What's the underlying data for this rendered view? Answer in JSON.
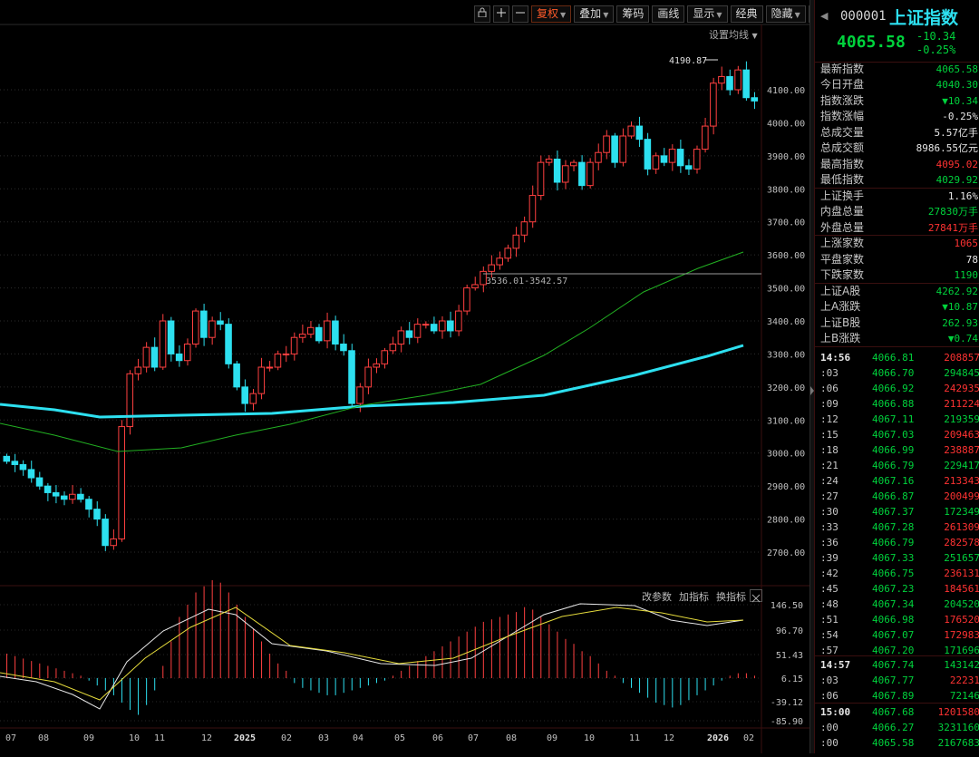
{
  "toolbar": {
    "buttons": [
      {
        "label": "复权",
        "active": true,
        "caret": true
      },
      {
        "label": "叠加",
        "caret": true
      },
      {
        "label": "筹码"
      },
      {
        "label": "画线"
      },
      {
        "label": "显示",
        "caret": true
      },
      {
        "label": "经典"
      },
      {
        "label": "隐藏",
        "caret": true
      }
    ],
    "icons": [
      "lock-icon",
      "plus-icon",
      "minus-icon",
      "fullscreen-icon"
    ],
    "ma_setting": "设置均线"
  },
  "indicator_panel": {
    "buttons": [
      "改参数",
      "加指标",
      "换指标"
    ],
    "close_icon": "close-icon"
  },
  "annotations": {
    "high_label": "4190.87",
    "range_label": "3536.01-3542.57"
  },
  "chart_data": {
    "type": "candlestick",
    "price_axis": [
      4100,
      4000,
      3900,
      3800,
      3700,
      3600,
      3500,
      3400,
      3300,
      3200,
      3100,
      3000,
      2900,
      2800,
      2700
    ],
    "price_axis_labels": [
      "4100.00",
      "4000.00",
      "3900.00",
      "3800.00",
      "3700.00",
      "3600.00",
      "3500.00",
      "3400.00",
      "3300.00",
      "3200.00",
      "3100.00",
      "3000.00",
      "2900.00",
      "2800.00",
      "2700.00"
    ],
    "macd_axis_labels": [
      "146.50",
      "96.70",
      "51.43",
      "6.15",
      "-39.12",
      "-85.90"
    ],
    "x_labels": [
      "07",
      "08",
      "09",
      "10",
      "11",
      "12",
      "2025",
      "02",
      "03",
      "04",
      "05",
      "06",
      "07",
      "08",
      "09",
      "10",
      "11",
      "12",
      "2026",
      "02"
    ],
    "colors": {
      "up": "#ff4040",
      "down": "#2de0f0",
      "ma_long": "#2de0f0",
      "ma_mid": "#22b022",
      "dif": "#e8e8e8",
      "dea": "#e6dc3c"
    }
  },
  "quote": {
    "code": "000001",
    "name": "上证指数",
    "price": "4065.58",
    "change": "-10.34",
    "change_pct": "-0.25%",
    "fields": [
      {
        "label": "最新指数",
        "value": "4065.58",
        "color": "green"
      },
      {
        "label": "今日开盘",
        "value": "4040.30",
        "color": "green"
      },
      {
        "label": "指数涨跌",
        "value": "▼10.34",
        "color": "green"
      },
      {
        "label": "指数涨幅",
        "value": "-0.25%",
        "color": "white"
      },
      {
        "label": "总成交量",
        "value": "5.57亿手",
        "color": "white"
      },
      {
        "label": "总成交额",
        "value": "8986.55亿元",
        "color": "white"
      },
      {
        "label": "最高指数",
        "value": "4095.02",
        "color": "red"
      },
      {
        "label": "最低指数",
        "value": "4029.92",
        "color": "green"
      },
      {
        "label": "上证换手",
        "value": "1.16%",
        "color": "white"
      },
      {
        "label": "内盘总量",
        "value": "27830万手",
        "color": "green"
      },
      {
        "label": "外盘总量",
        "value": "27841万手",
        "color": "red"
      },
      {
        "label": "上涨家数",
        "value": "1065",
        "color": "red"
      },
      {
        "label": "平盘家数",
        "value": "78",
        "color": "white"
      },
      {
        "label": "下跌家数",
        "value": "1190",
        "color": "green"
      },
      {
        "label": "上证A股",
        "value": "4262.92",
        "color": "green"
      },
      {
        "label": "上A涨跌",
        "value": "▼10.87",
        "color": "green"
      },
      {
        "label": "上证B股",
        "value": "262.93",
        "color": "green"
      },
      {
        "label": "上B涨跌",
        "value": "▼0.74",
        "color": "green"
      }
    ]
  },
  "ticks": [
    {
      "time": "14:56",
      "price": "4066.81",
      "vol": "208857"
    },
    {
      "time": ":03",
      "price": "4066.70",
      "vol": "294845"
    },
    {
      "time": ":06",
      "price": "4066.92",
      "vol": "242935"
    },
    {
      "time": ":09",
      "price": "4066.88",
      "vol": "211224"
    },
    {
      "time": ":12",
      "price": "4067.11",
      "vol": "219359"
    },
    {
      "time": ":15",
      "price": "4067.03",
      "vol": "209463"
    },
    {
      "time": ":18",
      "price": "4066.99",
      "vol": "238887"
    },
    {
      "time": ":21",
      "price": "4066.79",
      "vol": "229417"
    },
    {
      "time": ":24",
      "price": "4067.16",
      "vol": "213343"
    },
    {
      "time": ":27",
      "price": "4066.87",
      "vol": "200499"
    },
    {
      "time": ":30",
      "price": "4067.37",
      "vol": "172349"
    },
    {
      "time": ":33",
      "price": "4067.28",
      "vol": "261309"
    },
    {
      "time": ":36",
      "price": "4066.79",
      "vol": "282578"
    },
    {
      "time": ":39",
      "price": "4067.33",
      "vol": "251657"
    },
    {
      "time": ":42",
      "price": "4066.75",
      "vol": "236131"
    },
    {
      "time": ":45",
      "price": "4067.23",
      "vol": "184561"
    },
    {
      "time": ":48",
      "price": "4067.34",
      "vol": "204520"
    },
    {
      "time": ":51",
      "price": "4066.98",
      "vol": "176520"
    },
    {
      "time": ":54",
      "price": "4067.07",
      "vol": "172983"
    },
    {
      "time": ":57",
      "price": "4067.20",
      "vol": "171696"
    },
    {
      "time": "14:57",
      "price": "4067.74",
      "vol": "143142"
    },
    {
      "time": ":03",
      "price": "4067.77",
      "vol": "22231"
    },
    {
      "time": ":06",
      "price": "4067.89",
      "vol": "72146"
    },
    {
      "time": "15:00",
      "price": "4067.68",
      "vol": "1201580"
    },
    {
      "time": ":00",
      "price": "4066.27",
      "vol": "3231160"
    },
    {
      "time": ":00",
      "price": "4065.58",
      "vol": "2167683"
    }
  ]
}
